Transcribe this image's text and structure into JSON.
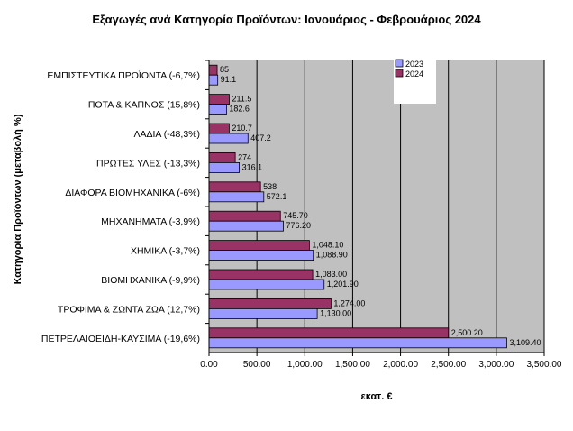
{
  "chart_data": {
    "type": "bar",
    "orientation": "horizontal",
    "title": "Εξαγωγές ανά Κατηγορία Προϊόντων: Ιανουάριος - Φεβρουάριος 2024",
    "xlabel": "εκατ. €",
    "ylabel": "Κατηγορία Προϊόντων (μεταβολή %)",
    "xlim": [
      0,
      3500
    ],
    "xticks": [
      "0.00",
      "500.00",
      "1,000.00",
      "1,500.00",
      "2,000.00",
      "2,500.00",
      "3,000.00",
      "3,500.00"
    ],
    "grid": true,
    "legend_position": "top-right",
    "categories": [
      "ΕΜΠΙΣΤΕΥΤΙΚΑ ΠΡΟΪΟΝΤΑ (-6,7%)",
      "ΠΟΤΑ & ΚΑΠΝΟΣ (15,8%)",
      "ΛΑΔΙΑ (-48,3%)",
      "ΠΡΩΤΕΣ ΥΛΕΣ (-13,3%)",
      "ΔΙΑΦΟΡΑ ΒΙΟΜΗΧΑΝΙΚΑ (-6%)",
      "ΜΗΧΑΝΗΜΑΤΑ (-3,9%)",
      "ΧΗΜΙΚΑ (-3,7%)",
      "ΒΙΟΜΗΧΑΝΙΚΑ (-9,9%)",
      "ΤΡΟΦΙΜΑ & ΖΩΝΤΑ ΖΩΑ (12,7%)",
      "ΠΕΤΡΕΛΑΙΟΕΙΔΗ-ΚΑΥΣΙΜΑ (-19,6%)"
    ],
    "series": [
      {
        "name": "2024",
        "color": "#993366",
        "values": [
          85,
          211.5,
          210.7,
          274,
          538,
          745.7,
          1048.1,
          1083.0,
          1274.0,
          2500.2
        ],
        "labels": [
          "85",
          "211.5",
          "210.7",
          "274",
          "538",
          "745.70",
          "1,048.10",
          "1,083.00",
          "1,274.00",
          "2,500.20"
        ]
      },
      {
        "name": "2023",
        "color": "#9999ff",
        "values": [
          91.1,
          182.6,
          407.2,
          316.1,
          572.1,
          776.2,
          1088.9,
          1201.9,
          1130.0,
          3109.4
        ],
        "labels": [
          "91.1",
          "182.6",
          "407.2",
          "316.1",
          "572.1",
          "776.20",
          "1,088.90",
          "1,201.90",
          "1,130.00",
          "3,109.40"
        ]
      }
    ],
    "legend_order": [
      "2023",
      "2024"
    ],
    "plot_background": "#c0c0c0"
  }
}
